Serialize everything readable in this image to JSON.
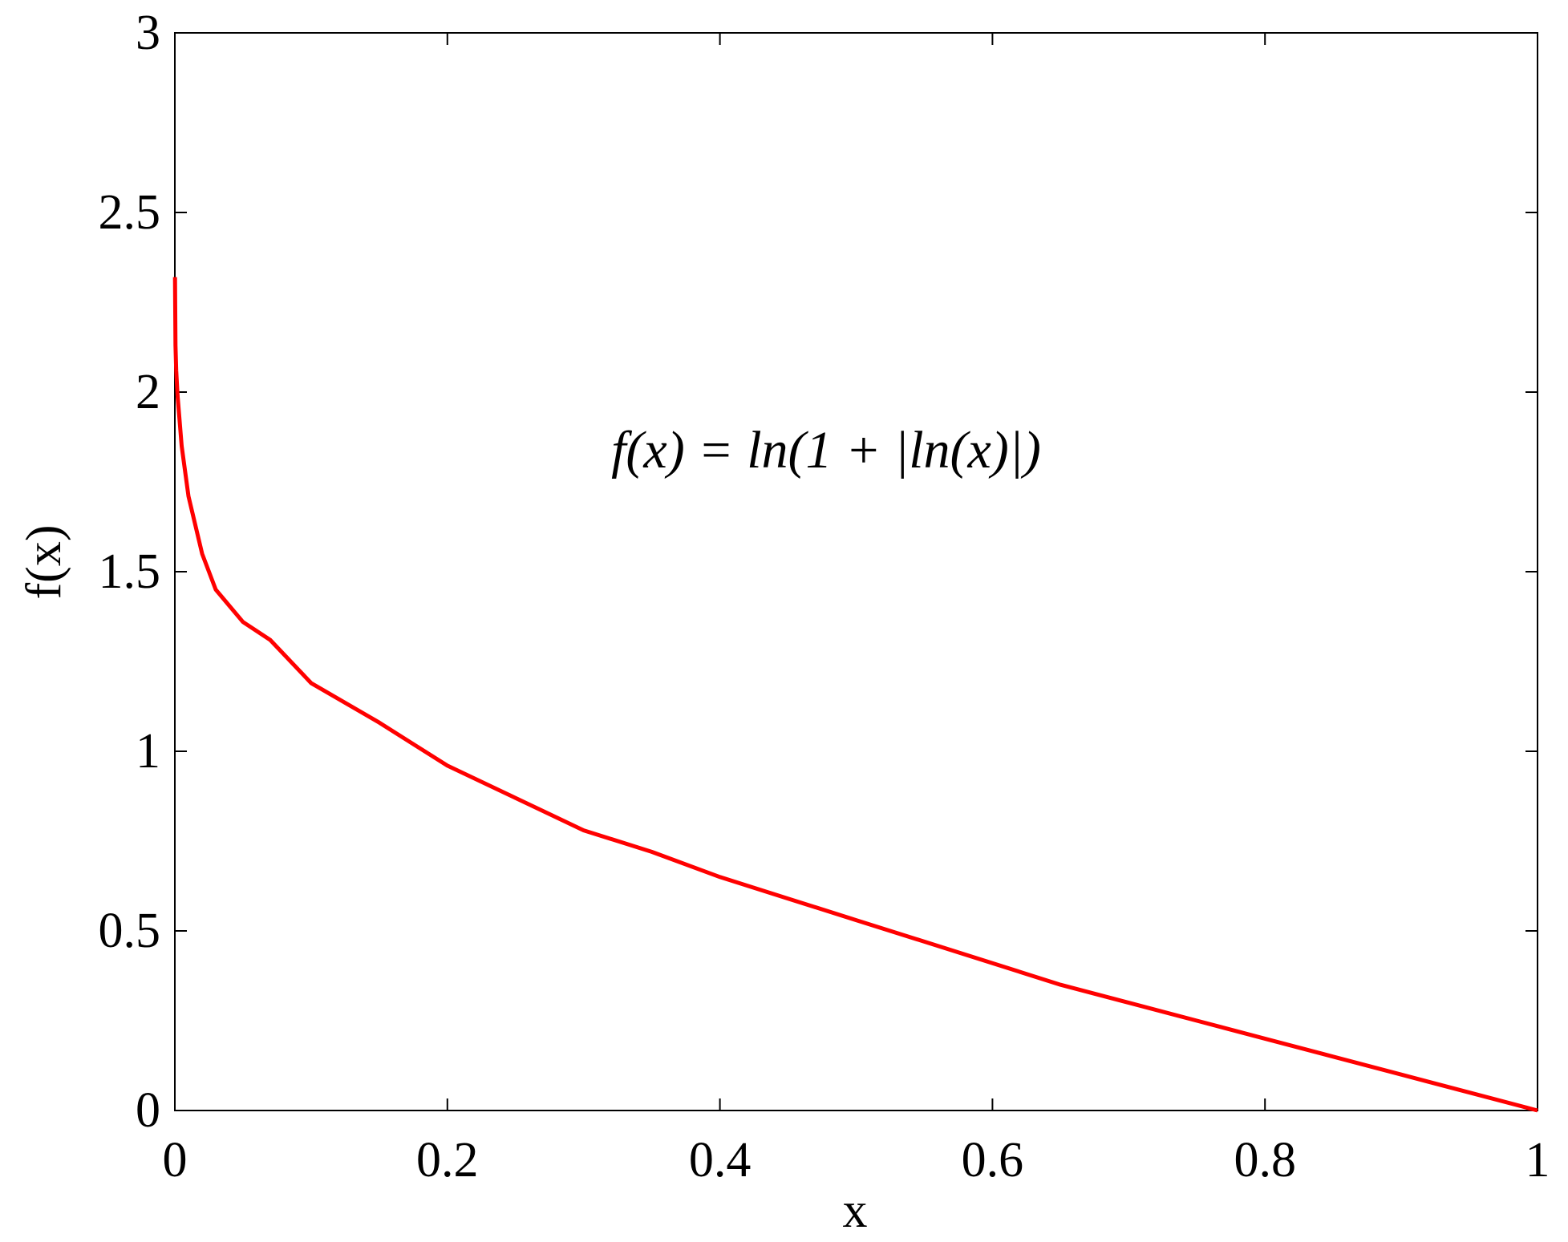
{
  "chart_data": {
    "type": "line",
    "title": "",
    "xlabel": "x",
    "ylabel": "f(x)",
    "xlim": [
      0,
      1
    ],
    "ylim": [
      0,
      3
    ],
    "xticks": [
      0,
      0.2,
      0.4,
      0.6,
      0.8,
      1
    ],
    "xtick_labels": [
      "0",
      "0.2",
      "0.4",
      "0.6",
      "0.8",
      "1"
    ],
    "yticks": [
      0,
      0.5,
      1,
      1.5,
      2,
      2.5,
      3
    ],
    "ytick_labels": [
      "0",
      "0.5",
      "1",
      "1.5",
      "2",
      "2.5",
      "3"
    ],
    "grid": false,
    "legend": "none",
    "annotation": "f(x) = ln(1 + |ln(x)|)",
    "series": [
      {
        "color": "#ff0000",
        "x": [
          0.0001,
          0.0005,
          0.001,
          0.002,
          0.005,
          0.01,
          0.02,
          0.03,
          0.05,
          0.07,
          0.1,
          0.15,
          0.2,
          0.25,
          0.3,
          0.35,
          0.4,
          0.45,
          0.5,
          0.55,
          0.6,
          0.65,
          0.7,
          0.75,
          0.8,
          0.85,
          0.9,
          0.95,
          1.0
        ],
        "y": [
          2.32,
          2.13,
          2.06,
          1.99,
          1.85,
          1.71,
          1.55,
          1.45,
          1.36,
          1.31,
          1.19,
          1.08,
          0.96,
          0.87,
          0.78,
          0.72,
          0.65,
          0.59,
          0.53,
          0.47,
          0.41,
          0.35,
          0.3,
          0.25,
          0.2,
          0.15,
          0.1,
          0.05,
          0.0
        ]
      }
    ]
  }
}
